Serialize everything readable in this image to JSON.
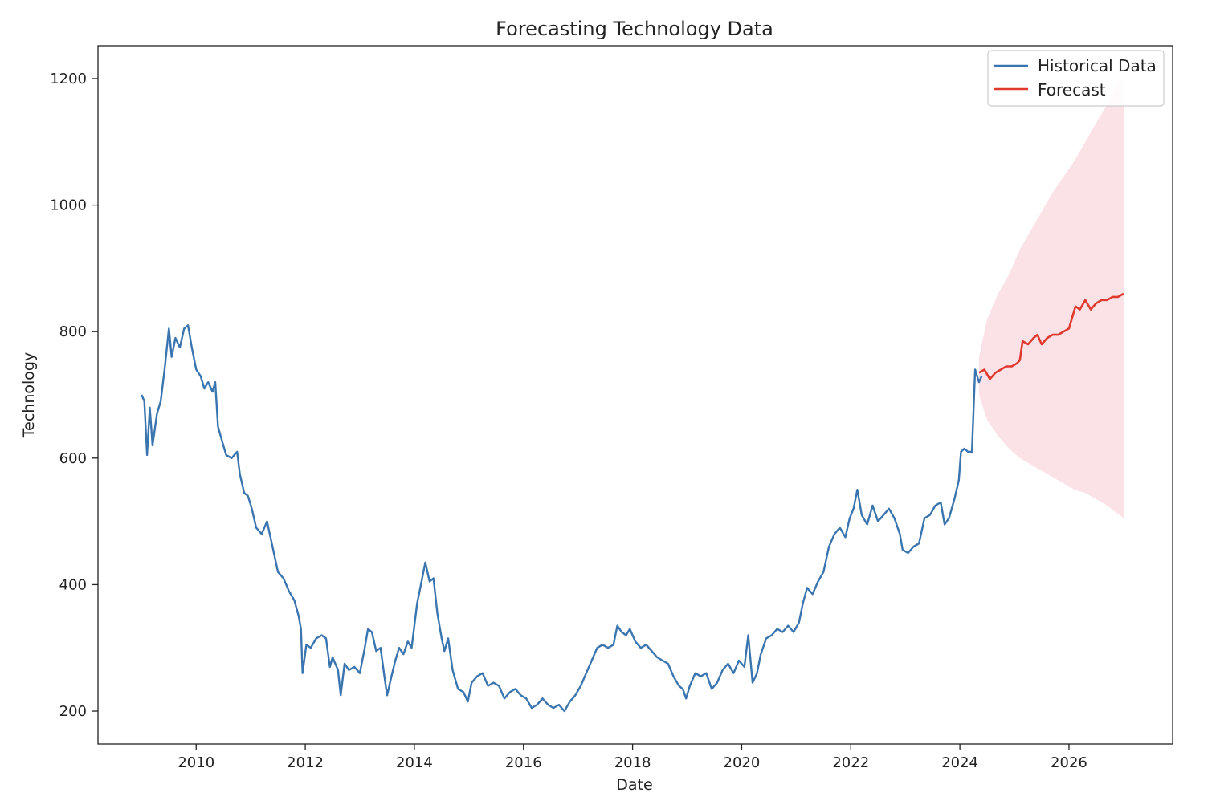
{
  "chart_data": {
    "type": "line",
    "title": "Forecasting Technology Data",
    "xlabel": "Date",
    "ylabel": "Technology",
    "xlim": [
      2008.2,
      2027.9
    ],
    "ylim": [
      148,
      1252
    ],
    "x_ticks": [
      2010,
      2012,
      2014,
      2016,
      2018,
      2020,
      2022,
      2024,
      2026
    ],
    "x_tick_labels": [
      "2010",
      "2012",
      "2014",
      "2016",
      "2018",
      "2020",
      "2022",
      "2024",
      "2026"
    ],
    "y_ticks": [
      200,
      400,
      600,
      800,
      1000,
      1200
    ],
    "y_tick_labels": [
      "200",
      "400",
      "600",
      "800",
      "1000",
      "1200"
    ],
    "grid": false,
    "legend_position": "top-right",
    "series": [
      {
        "name": "Historical Data",
        "color": "#3a75b0",
        "points": [
          [
            2009.0,
            700
          ],
          [
            2009.05,
            690
          ],
          [
            2009.1,
            605
          ],
          [
            2009.15,
            680
          ],
          [
            2009.2,
            620
          ],
          [
            2009.28,
            670
          ],
          [
            2009.35,
            690
          ],
          [
            2009.42,
            740
          ],
          [
            2009.5,
            805
          ],
          [
            2009.55,
            760
          ],
          [
            2009.62,
            790
          ],
          [
            2009.7,
            775
          ],
          [
            2009.78,
            805
          ],
          [
            2009.85,
            810
          ],
          [
            2009.92,
            775
          ],
          [
            2010.0,
            740
          ],
          [
            2010.08,
            730
          ],
          [
            2010.15,
            710
          ],
          [
            2010.22,
            720
          ],
          [
            2010.3,
            705
          ],
          [
            2010.35,
            720
          ],
          [
            2010.4,
            650
          ],
          [
            2010.48,
            625
          ],
          [
            2010.55,
            605
          ],
          [
            2010.65,
            600
          ],
          [
            2010.75,
            610
          ],
          [
            2010.8,
            575
          ],
          [
            2010.88,
            545
          ],
          [
            2010.95,
            540
          ],
          [
            2011.02,
            520
          ],
          [
            2011.1,
            490
          ],
          [
            2011.2,
            480
          ],
          [
            2011.3,
            500
          ],
          [
            2011.4,
            460
          ],
          [
            2011.5,
            420
          ],
          [
            2011.6,
            410
          ],
          [
            2011.7,
            390
          ],
          [
            2011.8,
            375
          ],
          [
            2011.88,
            350
          ],
          [
            2011.92,
            330
          ],
          [
            2011.95,
            260
          ],
          [
            2012.02,
            305
          ],
          [
            2012.1,
            300
          ],
          [
            2012.2,
            315
          ],
          [
            2012.3,
            320
          ],
          [
            2012.38,
            315
          ],
          [
            2012.45,
            270
          ],
          [
            2012.5,
            285
          ],
          [
            2012.6,
            265
          ],
          [
            2012.65,
            225
          ],
          [
            2012.72,
            275
          ],
          [
            2012.8,
            265
          ],
          [
            2012.9,
            270
          ],
          [
            2013.0,
            260
          ],
          [
            2013.08,
            295
          ],
          [
            2013.15,
            330
          ],
          [
            2013.22,
            325
          ],
          [
            2013.3,
            295
          ],
          [
            2013.38,
            300
          ],
          [
            2013.45,
            255
          ],
          [
            2013.5,
            225
          ],
          [
            2013.58,
            255
          ],
          [
            2013.65,
            280
          ],
          [
            2013.72,
            300
          ],
          [
            2013.8,
            290
          ],
          [
            2013.88,
            310
          ],
          [
            2013.95,
            300
          ],
          [
            2014.05,
            370
          ],
          [
            2014.12,
            400
          ],
          [
            2014.2,
            435
          ],
          [
            2014.28,
            405
          ],
          [
            2014.35,
            410
          ],
          [
            2014.42,
            355
          ],
          [
            2014.5,
            315
          ],
          [
            2014.55,
            295
          ],
          [
            2014.62,
            315
          ],
          [
            2014.7,
            265
          ],
          [
            2014.8,
            235
          ],
          [
            2014.9,
            230
          ],
          [
            2014.98,
            215
          ],
          [
            2015.05,
            245
          ],
          [
            2015.15,
            255
          ],
          [
            2015.25,
            260
          ],
          [
            2015.35,
            240
          ],
          [
            2015.45,
            245
          ],
          [
            2015.55,
            240
          ],
          [
            2015.65,
            220
          ],
          [
            2015.75,
            230
          ],
          [
            2015.85,
            235
          ],
          [
            2015.95,
            225
          ],
          [
            2016.05,
            220
          ],
          [
            2016.15,
            205
          ],
          [
            2016.25,
            210
          ],
          [
            2016.35,
            220
          ],
          [
            2016.45,
            210
          ],
          [
            2016.55,
            205
          ],
          [
            2016.65,
            210
          ],
          [
            2016.75,
            200
          ],
          [
            2016.85,
            215
          ],
          [
            2016.95,
            225
          ],
          [
            2017.05,
            240
          ],
          [
            2017.15,
            260
          ],
          [
            2017.25,
            280
          ],
          [
            2017.35,
            300
          ],
          [
            2017.45,
            305
          ],
          [
            2017.55,
            300
          ],
          [
            2017.65,
            305
          ],
          [
            2017.72,
            335
          ],
          [
            2017.8,
            325
          ],
          [
            2017.88,
            320
          ],
          [
            2017.95,
            330
          ],
          [
            2018.05,
            310
          ],
          [
            2018.15,
            300
          ],
          [
            2018.25,
            305
          ],
          [
            2018.35,
            295
          ],
          [
            2018.45,
            285
          ],
          [
            2018.55,
            280
          ],
          [
            2018.65,
            275
          ],
          [
            2018.75,
            255
          ],
          [
            2018.85,
            240
          ],
          [
            2018.92,
            235
          ],
          [
            2018.98,
            220
          ],
          [
            2019.05,
            240
          ],
          [
            2019.15,
            260
          ],
          [
            2019.25,
            255
          ],
          [
            2019.35,
            260
          ],
          [
            2019.45,
            235
          ],
          [
            2019.55,
            245
          ],
          [
            2019.65,
            265
          ],
          [
            2019.75,
            275
          ],
          [
            2019.85,
            260
          ],
          [
            2019.95,
            280
          ],
          [
            2020.05,
            270
          ],
          [
            2020.12,
            320
          ],
          [
            2020.2,
            245
          ],
          [
            2020.28,
            260
          ],
          [
            2020.35,
            290
          ],
          [
            2020.45,
            315
          ],
          [
            2020.55,
            320
          ],
          [
            2020.65,
            330
          ],
          [
            2020.75,
            325
          ],
          [
            2020.85,
            335
          ],
          [
            2020.95,
            325
          ],
          [
            2021.05,
            340
          ],
          [
            2021.12,
            370
          ],
          [
            2021.2,
            395
          ],
          [
            2021.3,
            385
          ],
          [
            2021.4,
            405
          ],
          [
            2021.5,
            420
          ],
          [
            2021.6,
            460
          ],
          [
            2021.7,
            480
          ],
          [
            2021.8,
            490
          ],
          [
            2021.9,
            475
          ],
          [
            2021.98,
            505
          ],
          [
            2022.05,
            520
          ],
          [
            2022.12,
            550
          ],
          [
            2022.2,
            510
          ],
          [
            2022.3,
            495
          ],
          [
            2022.4,
            525
          ],
          [
            2022.5,
            500
          ],
          [
            2022.6,
            510
          ],
          [
            2022.7,
            520
          ],
          [
            2022.8,
            505
          ],
          [
            2022.9,
            480
          ],
          [
            2022.95,
            455
          ],
          [
            2023.05,
            450
          ],
          [
            2023.15,
            460
          ],
          [
            2023.25,
            465
          ],
          [
            2023.35,
            505
          ],
          [
            2023.45,
            510
          ],
          [
            2023.55,
            525
          ],
          [
            2023.65,
            530
          ],
          [
            2023.72,
            495
          ],
          [
            2023.8,
            505
          ],
          [
            2023.9,
            535
          ],
          [
            2023.98,
            565
          ],
          [
            2024.02,
            610
          ],
          [
            2024.08,
            615
          ],
          [
            2024.15,
            610
          ],
          [
            2024.22,
            610
          ],
          [
            2024.28,
            740
          ],
          [
            2024.35,
            720
          ],
          [
            2024.4,
            730
          ]
        ]
      },
      {
        "name": "Forecast",
        "color": "#e03a2f",
        "points": [
          [
            2024.35,
            735
          ],
          [
            2024.45,
            740
          ],
          [
            2024.55,
            725
          ],
          [
            2024.65,
            735
          ],
          [
            2024.75,
            740
          ],
          [
            2024.85,
            745
          ],
          [
            2024.95,
            745
          ],
          [
            2025.05,
            750
          ],
          [
            2025.1,
            755
          ],
          [
            2025.15,
            785
          ],
          [
            2025.25,
            780
          ],
          [
            2025.35,
            790
          ],
          [
            2025.42,
            795
          ],
          [
            2025.5,
            780
          ],
          [
            2025.6,
            790
          ],
          [
            2025.7,
            795
          ],
          [
            2025.8,
            795
          ],
          [
            2025.9,
            800
          ],
          [
            2026.0,
            805
          ],
          [
            2026.05,
            820
          ],
          [
            2026.12,
            840
          ],
          [
            2026.2,
            835
          ],
          [
            2026.3,
            850
          ],
          [
            2026.4,
            835
          ],
          [
            2026.5,
            845
          ],
          [
            2026.6,
            850
          ],
          [
            2026.7,
            850
          ],
          [
            2026.8,
            855
          ],
          [
            2026.9,
            855
          ],
          [
            2027.0,
            860
          ]
        ]
      }
    ],
    "confidence_band": {
      "color": "#fbe2e6",
      "upper": [
        [
          2024.35,
          760
        ],
        [
          2024.5,
          820
        ],
        [
          2024.7,
          860
        ],
        [
          2024.9,
          890
        ],
        [
          2025.1,
          930
        ],
        [
          2025.3,
          960
        ],
        [
          2025.5,
          990
        ],
        [
          2025.7,
          1020
        ],
        [
          2025.9,
          1045
        ],
        [
          2026.1,
          1070
        ],
        [
          2026.3,
          1100
        ],
        [
          2026.5,
          1130
        ],
        [
          2026.7,
          1160
        ],
        [
          2026.85,
          1185
        ],
        [
          2027.0,
          1205
        ]
      ],
      "lower": [
        [
          2027.0,
          505
        ],
        [
          2026.85,
          515
        ],
        [
          2026.7,
          525
        ],
        [
          2026.5,
          535
        ],
        [
          2026.3,
          545
        ],
        [
          2026.1,
          550
        ],
        [
          2025.9,
          560
        ],
        [
          2025.7,
          570
        ],
        [
          2025.5,
          580
        ],
        [
          2025.3,
          590
        ],
        [
          2025.1,
          600
        ],
        [
          2024.9,
          615
        ],
        [
          2024.7,
          635
        ],
        [
          2024.5,
          660
        ],
        [
          2024.35,
          700
        ]
      ]
    }
  }
}
